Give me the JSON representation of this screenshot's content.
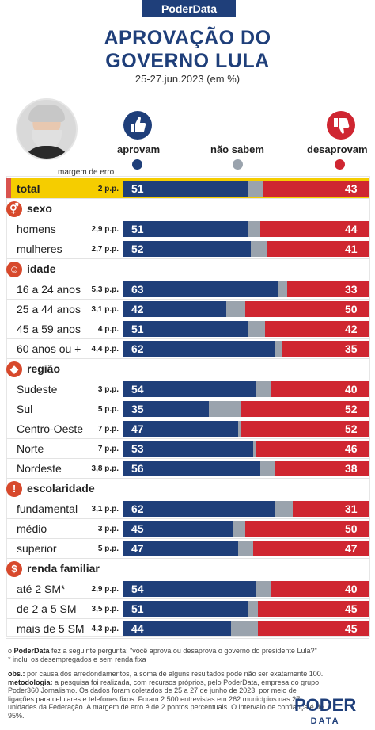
{
  "header": {
    "brand": "PoderData",
    "title_line1": "APROVAÇÃO DO",
    "title_line2": "GOVERNO LULA",
    "subtitle": "25-27.jun.2023 (em %)"
  },
  "legend": {
    "approve": "aprovam",
    "unknown": "não sabem",
    "disapprove": "desaprovam",
    "moe_header": "margem de erro"
  },
  "colors": {
    "approve": "#1f3f7a",
    "unknown": "#9aa3ad",
    "disapprove": "#cf2631",
    "highlight": "#f5cd00",
    "section_icon": "#d7492c"
  },
  "icons": {
    "approve": "thumbs-up-icon",
    "disapprove": "thumbs-down-icon",
    "sexo": "gender-icon",
    "idade": "person-icon",
    "regiao": "brazil-map-icon",
    "escolaridade": "exclamation-icon",
    "renda familiar": "dollar-icon"
  },
  "chart_data": {
    "type": "bar",
    "stacked": true,
    "orientation": "horizontal",
    "series_names": [
      "aprovam",
      "não sabem",
      "desaprovam"
    ],
    "rows": [
      {
        "kind": "total",
        "label": "total",
        "moe": "2 p.p.",
        "approve": 51,
        "disapprove": 43
      },
      {
        "kind": "section",
        "label": "sexo"
      },
      {
        "kind": "row",
        "label": "homens",
        "moe": "2,9 p.p.",
        "approve": 51,
        "disapprove": 44
      },
      {
        "kind": "row",
        "label": "mulheres",
        "moe": "2,7 p.p.",
        "approve": 52,
        "disapprove": 41
      },
      {
        "kind": "section",
        "label": "idade"
      },
      {
        "kind": "row",
        "label": "16 a 24 anos",
        "moe": "5,3 p.p.",
        "approve": 63,
        "disapprove": 33
      },
      {
        "kind": "row",
        "label": "25 a 44 anos",
        "moe": "3,1 p.p.",
        "approve": 42,
        "disapprove": 50
      },
      {
        "kind": "row",
        "label": "45 a 59 anos",
        "moe": "4 p.p.",
        "approve": 51,
        "disapprove": 42
      },
      {
        "kind": "row",
        "label": "60 anos ou +",
        "moe": "4,4 p.p.",
        "approve": 62,
        "disapprove": 35
      },
      {
        "kind": "section",
        "label": "região"
      },
      {
        "kind": "row",
        "label": "Sudeste",
        "moe": "3 p.p.",
        "approve": 54,
        "disapprove": 40
      },
      {
        "kind": "row",
        "label": "Sul",
        "moe": "5 p.p.",
        "approve": 35,
        "disapprove": 52
      },
      {
        "kind": "row",
        "label": "Centro-Oeste",
        "moe": "7 p.p.",
        "approve": 47,
        "disapprove": 52
      },
      {
        "kind": "row",
        "label": "Norte",
        "moe": "7 p.p.",
        "approve": 53,
        "disapprove": 46
      },
      {
        "kind": "row",
        "label": "Nordeste",
        "moe": "3,8 p.p.",
        "approve": 56,
        "disapprove": 38
      },
      {
        "kind": "section",
        "label": "escolaridade"
      },
      {
        "kind": "row",
        "label": "fundamental",
        "moe": "3,1 p.p.",
        "approve": 62,
        "disapprove": 31
      },
      {
        "kind": "row",
        "label": "médio",
        "moe": "3 p.p.",
        "approve": 45,
        "disapprove": 50
      },
      {
        "kind": "row",
        "label": "superior",
        "moe": "5 p.p.",
        "approve": 47,
        "disapprove": 47
      },
      {
        "kind": "section",
        "label": "renda familiar"
      },
      {
        "kind": "row",
        "label": "até 2 SM*",
        "moe": "2,9 p.p.",
        "approve": 54,
        "disapprove": 40
      },
      {
        "kind": "row",
        "label": "de 2 a 5 SM",
        "moe": "3,5 p.p.",
        "approve": 51,
        "disapprove": 45
      },
      {
        "kind": "row",
        "label": "mais de 5 SM",
        "moe": "4,3 p.p.",
        "approve": 44,
        "disapprove": 45
      }
    ]
  },
  "notes": {
    "line1_prefix": "o ",
    "line1_brand": "PoderData",
    "line1_text": " fez a seguinte pergunta: \"você aprova ou desaprova o governo do presidente Lula?\"",
    "line2": "* inclui os desempregados e sem renda fixa",
    "obs_label": "obs.:",
    "obs_text": " por causa dos arredondamentos, a soma de alguns resultados pode não ser exatamente 100.",
    "metodologia_label": "metodologia:",
    "metodologia_text": " a pesquisa foi realizada, com recursos próprios, pelo PoderData, empresa do grupo Poder360 Jornalismo. Os dados foram coletados de 25 a 27 de junho de 2023, por meio de ligações para celulares e telefones fixos. Foram 2.500 entrevistas em 262 municípios nas 27 unidades da Federação. A margem de erro é de 2 pontos percentuais. O intervalo de confiança é de 95%."
  },
  "logo": {
    "top": "PODER",
    "bottom": "DATA"
  }
}
